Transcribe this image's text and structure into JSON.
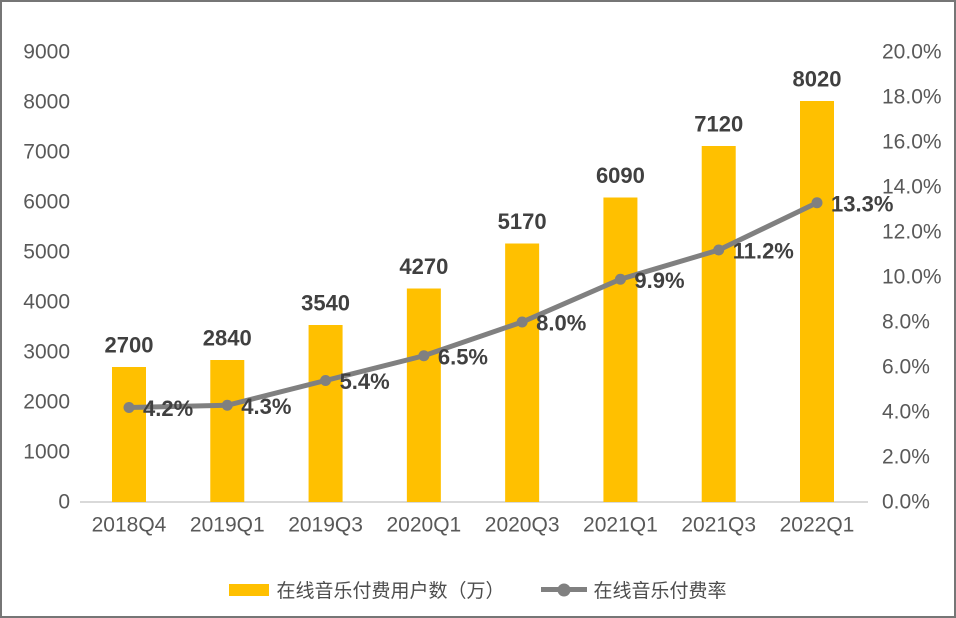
{
  "chart_data": {
    "type": "combo-bar-line",
    "title": "",
    "categories": [
      "2018Q4",
      "2019Q1",
      "2019Q3",
      "2020Q1",
      "2020Q3",
      "2021Q1",
      "2021Q3",
      "2022Q1"
    ],
    "series": [
      {
        "name": "在线音乐付费用户数（万）",
        "type": "bar",
        "axis": "left",
        "color": "#FFC000",
        "values": [
          2700,
          2840,
          3540,
          4270,
          5170,
          6090,
          7120,
          8020
        ],
        "labels": [
          "2700",
          "2840",
          "3540",
          "4270",
          "5170",
          "6090",
          "7120",
          "8020"
        ]
      },
      {
        "name": "在线音乐付费率",
        "type": "line",
        "axis": "right",
        "color": "#808080",
        "values": [
          4.2,
          4.3,
          5.4,
          6.5,
          8.0,
          9.9,
          11.2,
          13.3
        ],
        "labels": [
          "4.2%",
          "4.3%",
          "5.4%",
          "6.5%",
          "8.0%",
          "9.9%",
          "11.2%",
          "13.3%"
        ]
      }
    ],
    "left_axis": {
      "min": 0,
      "max": 9000,
      "step": 1000,
      "ticks": [
        "9000",
        "8000",
        "7000",
        "6000",
        "5000",
        "4000",
        "3000",
        "2000",
        "1000",
        "0"
      ]
    },
    "right_axis": {
      "min": 0,
      "max": 20,
      "step": 2,
      "ticks": [
        "20.0%",
        "18.0%",
        "16.0%",
        "14.0%",
        "12.0%",
        "10.0%",
        "8.0%",
        "6.0%",
        "4.0%",
        "2.0%",
        "0.0%"
      ]
    },
    "grid": false,
    "legend_position": "bottom",
    "colors": {
      "bar": "#FFC000",
      "line": "#808080",
      "data_label_text": "#404040",
      "tick_text": "#595959",
      "axis_line": "#d9d9d9",
      "frame_border": "#767676",
      "background": "#ffffff"
    }
  }
}
